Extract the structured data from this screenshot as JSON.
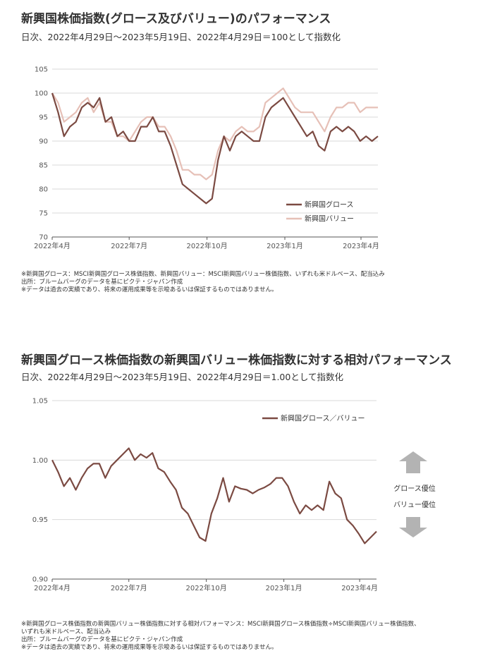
{
  "chart_data": [
    {
      "type": "line",
      "title": "新興国株価指数(グロース及びバリュー)のパフォーマンス",
      "subtitle": "日次、2022年4月29日～2023年5月19日、2022年4月29日＝100として指数化",
      "ylim": [
        70,
        105
      ],
      "yticks": [
        "105",
        "100",
        "95",
        "90",
        "85",
        "80",
        "75",
        "70"
      ],
      "xticks": [
        "2022年4月",
        "2022年7月",
        "2022年10月",
        "2023年1月",
        "2023年4月"
      ],
      "xtick_dates": [
        "2022-04-29",
        "2022-07-29",
        "2022-10-29",
        "2023-01-29",
        "2023-04-29"
      ],
      "xlim": [
        "2022-04-29",
        "2023-05-19"
      ],
      "grid": true,
      "legend": "bottom-right",
      "colors": {
        "growth": "#7b4a42",
        "value": "#e6c0b7"
      },
      "series": [
        {
          "name": "新興国グロース",
          "points": [
            [
              "2022-04-29",
              100
            ],
            [
              "2022-05-06",
              96
            ],
            [
              "2022-05-13",
              91
            ],
            [
              "2022-05-20",
              93
            ],
            [
              "2022-05-27",
              94
            ],
            [
              "2022-06-03",
              97
            ],
            [
              "2022-06-10",
              98
            ],
            [
              "2022-06-17",
              97
            ],
            [
              "2022-06-24",
              99
            ],
            [
              "2022-07-01",
              94
            ],
            [
              "2022-07-08",
              95
            ],
            [
              "2022-07-15",
              91
            ],
            [
              "2022-07-22",
              92
            ],
            [
              "2022-07-29",
              90
            ],
            [
              "2022-08-05",
              90
            ],
            [
              "2022-08-12",
              93
            ],
            [
              "2022-08-19",
              93
            ],
            [
              "2022-08-26",
              95
            ],
            [
              "2022-09-02",
              92
            ],
            [
              "2022-09-09",
              92
            ],
            [
              "2022-09-16",
              89
            ],
            [
              "2022-09-23",
              85
            ],
            [
              "2022-09-30",
              81
            ],
            [
              "2022-10-07",
              80
            ],
            [
              "2022-10-14",
              79
            ],
            [
              "2022-10-21",
              78
            ],
            [
              "2022-10-28",
              77
            ],
            [
              "2022-11-04",
              78
            ],
            [
              "2022-11-11",
              86
            ],
            [
              "2022-11-18",
              91
            ],
            [
              "2022-11-25",
              88
            ],
            [
              "2022-12-02",
              91
            ],
            [
              "2022-12-09",
              92
            ],
            [
              "2022-12-16",
              91
            ],
            [
              "2022-12-23",
              90
            ],
            [
              "2022-12-30",
              90
            ],
            [
              "2023-01-06",
              95
            ],
            [
              "2023-01-13",
              97
            ],
            [
              "2023-01-20",
              98
            ],
            [
              "2023-01-27",
              99
            ],
            [
              "2023-02-03",
              97
            ],
            [
              "2023-02-10",
              95
            ],
            [
              "2023-02-17",
              93
            ],
            [
              "2023-02-24",
              91
            ],
            [
              "2023-03-03",
              92
            ],
            [
              "2023-03-10",
              89
            ],
            [
              "2023-03-17",
              88
            ],
            [
              "2023-03-24",
              92
            ],
            [
              "2023-03-31",
              93
            ],
            [
              "2023-04-07",
              92
            ],
            [
              "2023-04-14",
              93
            ],
            [
              "2023-04-21",
              92
            ],
            [
              "2023-04-28",
              90
            ],
            [
              "2023-05-05",
              91
            ],
            [
              "2023-05-12",
              90
            ],
            [
              "2023-05-19",
              91
            ]
          ]
        },
        {
          "name": "新興国バリュー",
          "points": [
            [
              "2022-04-29",
              100
            ],
            [
              "2022-05-06",
              98
            ],
            [
              "2022-05-13",
              94
            ],
            [
              "2022-05-20",
              95
            ],
            [
              "2022-05-27",
              96
            ],
            [
              "2022-06-03",
              98
            ],
            [
              "2022-06-10",
              99
            ],
            [
              "2022-06-17",
              96
            ],
            [
              "2022-06-24",
              98
            ],
            [
              "2022-07-01",
              94
            ],
            [
              "2022-07-08",
              94
            ],
            [
              "2022-07-15",
              91
            ],
            [
              "2022-07-22",
              91
            ],
            [
              "2022-07-29",
              90
            ],
            [
              "2022-08-05",
              92
            ],
            [
              "2022-08-12",
              94
            ],
            [
              "2022-08-19",
              95
            ],
            [
              "2022-08-26",
              95
            ],
            [
              "2022-09-02",
              93
            ],
            [
              "2022-09-09",
              93
            ],
            [
              "2022-09-16",
              91
            ],
            [
              "2022-09-23",
              88
            ],
            [
              "2022-09-30",
              84
            ],
            [
              "2022-10-07",
              84
            ],
            [
              "2022-10-14",
              83
            ],
            [
              "2022-10-21",
              83
            ],
            [
              "2022-10-28",
              82
            ],
            [
              "2022-11-04",
              83
            ],
            [
              "2022-11-11",
              88
            ],
            [
              "2022-11-18",
              91
            ],
            [
              "2022-11-25",
              90
            ],
            [
              "2022-12-02",
              92
            ],
            [
              "2022-12-09",
              93
            ],
            [
              "2022-12-16",
              92
            ],
            [
              "2022-12-23",
              92
            ],
            [
              "2022-12-30",
              93
            ],
            [
              "2023-01-06",
              98
            ],
            [
              "2023-01-13",
              99
            ],
            [
              "2023-01-20",
              100
            ],
            [
              "2023-01-27",
              101
            ],
            [
              "2023-02-03",
              99
            ],
            [
              "2023-02-10",
              97
            ],
            [
              "2023-02-17",
              96
            ],
            [
              "2023-02-24",
              96
            ],
            [
              "2023-03-03",
              96
            ],
            [
              "2023-03-10",
              94
            ],
            [
              "2023-03-17",
              92
            ],
            [
              "2023-03-24",
              95
            ],
            [
              "2023-03-31",
              97
            ],
            [
              "2023-04-07",
              97
            ],
            [
              "2023-04-14",
              98
            ],
            [
              "2023-04-21",
              98
            ],
            [
              "2023-04-28",
              96
            ],
            [
              "2023-05-05",
              97
            ],
            [
              "2023-05-12",
              97
            ],
            [
              "2023-05-19",
              97
            ]
          ]
        }
      ],
      "notes": [
        "※新興国グロース：MSCI新興国グロース株価指数、新興国バリュー：MSCI新興国バリュー株価指数、いずれも米ドルベース、配当込み",
        "出所：ブルームバーグのデータを基にピクテ・ジャパン作成",
        "※データは過去の実績であり、将来の運用成果等を示唆あるいは保証するものではありません。"
      ]
    },
    {
      "type": "line",
      "title": "新興国グロース株価指数の新興国バリュー株価指数に対する相対パフォーマンス",
      "subtitle": "日次、2022年4月29日～2023年5月19日、2022年4月29日＝1.00として指数化",
      "ylim": [
        0.9,
        1.05
      ],
      "yticks": [
        "1.05",
        "1.00",
        "0.95",
        "0.90"
      ],
      "xticks": [
        "2022年4月",
        "2022年7月",
        "2022年10月",
        "2023年1月",
        "2023年4月"
      ],
      "xtick_dates": [
        "2022-04-29",
        "2022-07-29",
        "2022-10-29",
        "2023-01-29",
        "2023-04-29"
      ],
      "xlim": [
        "2022-04-29",
        "2023-05-19"
      ],
      "grid": true,
      "legend": "top-right",
      "colors": {
        "ratio": "#7b4a42",
        "arrow": "#b3b3b3"
      },
      "annotations": {
        "up": "グロース優位",
        "down": "バリュー優位"
      },
      "series": [
        {
          "name": "新興国グロース／バリュー",
          "points": [
            [
              "2022-04-29",
              1.0
            ],
            [
              "2022-05-06",
              0.99
            ],
            [
              "2022-05-13",
              0.978
            ],
            [
              "2022-05-20",
              0.985
            ],
            [
              "2022-05-27",
              0.975
            ],
            [
              "2022-06-03",
              0.985
            ],
            [
              "2022-06-10",
              0.993
            ],
            [
              "2022-06-17",
              0.997
            ],
            [
              "2022-06-24",
              0.997
            ],
            [
              "2022-07-01",
              0.985
            ],
            [
              "2022-07-08",
              0.995
            ],
            [
              "2022-07-15",
              1.0
            ],
            [
              "2022-07-22",
              1.005
            ],
            [
              "2022-07-29",
              1.01
            ],
            [
              "2022-08-05",
              1.0
            ],
            [
              "2022-08-12",
              1.005
            ],
            [
              "2022-08-19",
              1.002
            ],
            [
              "2022-08-26",
              1.006
            ],
            [
              "2022-09-02",
              0.993
            ],
            [
              "2022-09-09",
              0.99
            ],
            [
              "2022-09-16",
              0.982
            ],
            [
              "2022-09-23",
              0.975
            ],
            [
              "2022-09-30",
              0.96
            ],
            [
              "2022-10-07",
              0.955
            ],
            [
              "2022-10-14",
              0.945
            ],
            [
              "2022-10-21",
              0.935
            ],
            [
              "2022-10-28",
              0.932
            ],
            [
              "2022-11-04",
              0.955
            ],
            [
              "2022-11-11",
              0.968
            ],
            [
              "2022-11-18",
              0.985
            ],
            [
              "2022-11-25",
              0.965
            ],
            [
              "2022-12-02",
              0.978
            ],
            [
              "2022-12-09",
              0.976
            ],
            [
              "2022-12-16",
              0.975
            ],
            [
              "2022-12-23",
              0.972
            ],
            [
              "2022-12-30",
              0.975
            ],
            [
              "2023-01-06",
              0.977
            ],
            [
              "2023-01-13",
              0.98
            ],
            [
              "2023-01-20",
              0.985
            ],
            [
              "2023-01-27",
              0.985
            ],
            [
              "2023-02-03",
              0.978
            ],
            [
              "2023-02-10",
              0.965
            ],
            [
              "2023-02-17",
              0.955
            ],
            [
              "2023-02-24",
              0.962
            ],
            [
              "2023-03-03",
              0.958
            ],
            [
              "2023-03-10",
              0.962
            ],
            [
              "2023-03-17",
              0.958
            ],
            [
              "2023-03-24",
              0.982
            ],
            [
              "2023-03-31",
              0.972
            ],
            [
              "2023-04-07",
              0.968
            ],
            [
              "2023-04-14",
              0.95
            ],
            [
              "2023-04-21",
              0.945
            ],
            [
              "2023-04-28",
              0.938
            ],
            [
              "2023-05-05",
              0.93
            ],
            [
              "2023-05-12",
              0.935
            ],
            [
              "2023-05-19",
              0.94
            ]
          ]
        }
      ],
      "notes": [
        "※新興国グロース株価指数の新興国バリュー株価指数に対する相対パフォーマンス：MSCI新興国グロース株価指数÷MSCI新興国バリュー株価指数、",
        "いずれも米ドルベース、配当込み",
        "出所：ブルームバーグのデータを基にピクテ・ジャパン作成",
        "※データは過去の実績であり、将来の運用成果等を示唆あるいは保証するものではありません。"
      ]
    }
  ]
}
